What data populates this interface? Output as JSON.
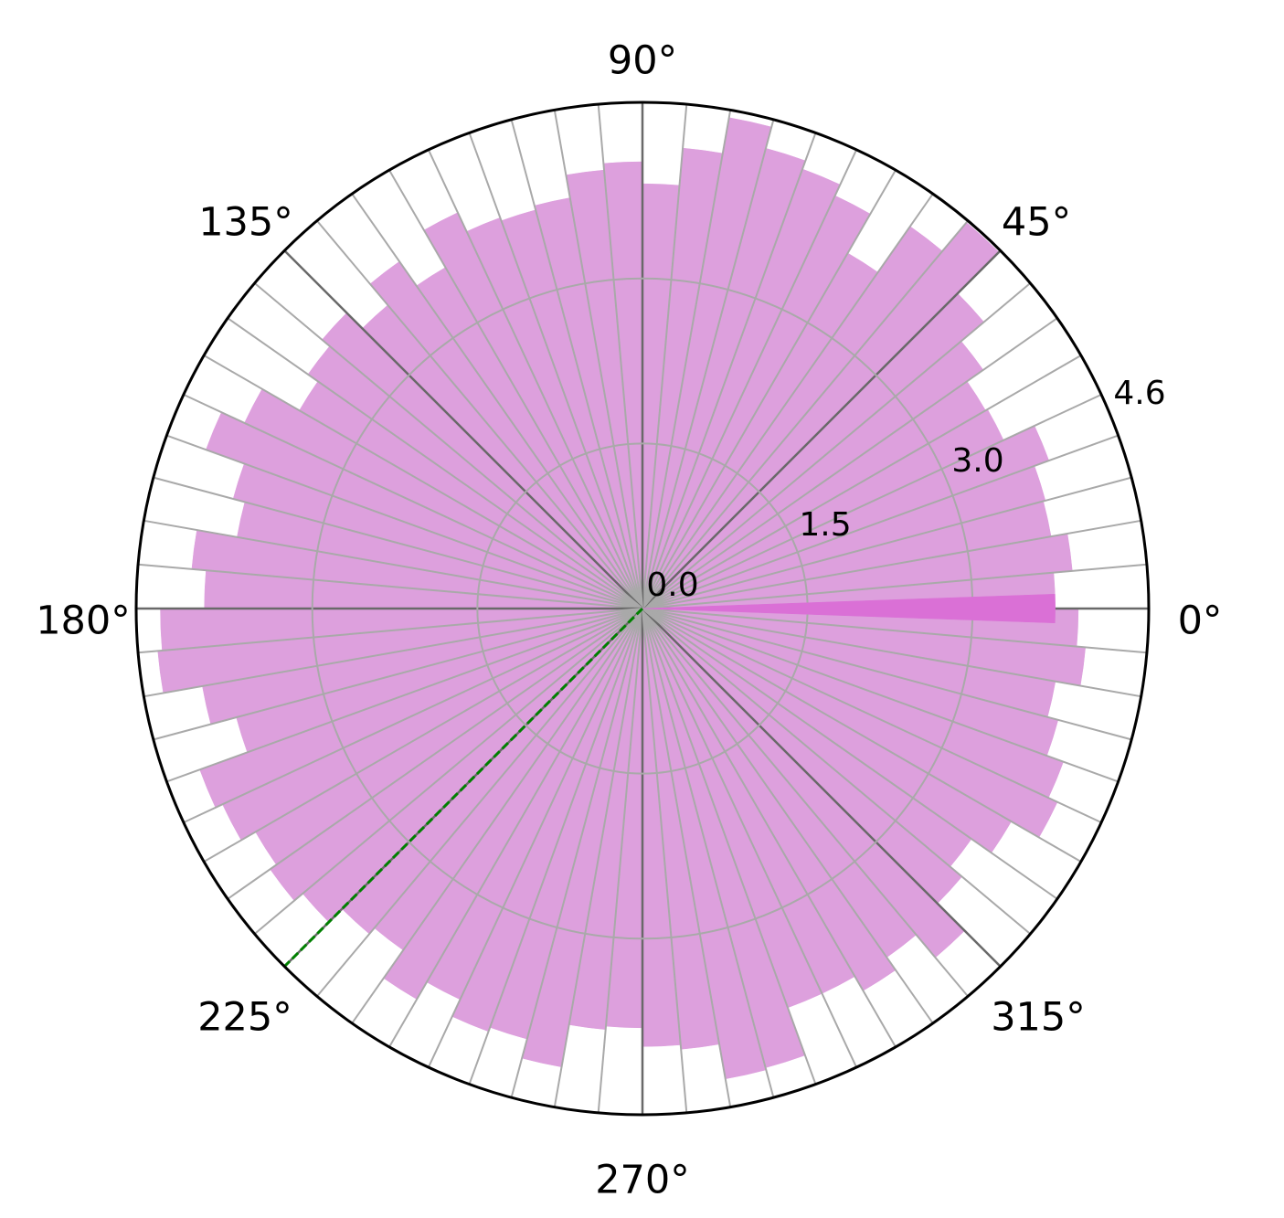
{
  "chart_data": {
    "type": "bar",
    "projection": "polar",
    "bin_count": 72,
    "bin_width_degrees": 5,
    "angle_direction": "counterclockwise",
    "angle_zero": "east",
    "r_range": [
      0,
      4.6
    ],
    "radial_ticks": [
      "0.0",
      "1.5",
      "3.0",
      "4.6"
    ],
    "angle_ticks": [
      "0°",
      "45°",
      "90°",
      "135°",
      "180°",
      "225°",
      "270°",
      "315°"
    ],
    "angle_tick_values": [
      0,
      45,
      90,
      135,
      180,
      225,
      270,
      315
    ],
    "bin_start_degrees": [
      0,
      5,
      10,
      15,
      20,
      25,
      30,
      35,
      40,
      45,
      50,
      55,
      60,
      65,
      70,
      75,
      80,
      85,
      90,
      95,
      100,
      105,
      110,
      115,
      120,
      125,
      130,
      135,
      140,
      145,
      150,
      155,
      160,
      165,
      170,
      175,
      180,
      185,
      190,
      195,
      200,
      205,
      210,
      215,
      220,
      225,
      230,
      235,
      240,
      245,
      250,
      255,
      260,
      265,
      270,
      275,
      280,
      285,
      290,
      295,
      300,
      305,
      310,
      315,
      320,
      325,
      330,
      335,
      340,
      345,
      350,
      355
    ],
    "values": [
      3.75,
      3.92,
      3.77,
      3.79,
      3.93,
      3.62,
      3.6,
      3.78,
      4.05,
      4.58,
      4.24,
      3.73,
      4.14,
      4.25,
      4.33,
      4.53,
      4.2,
      3.86,
      4.06,
      4.0,
      3.79,
      3.75,
      3.78,
      3.97,
      3.58,
      3.85,
      3.6,
      3.8,
      3.71,
      3.6,
      3.99,
      4.22,
      3.85,
      3.74,
      4.11,
      3.98,
      4.38,
      4.42,
      4.06,
      3.82,
      4.28,
      4.21,
      4.06,
      4.13,
      4.03,
      3.86,
      3.79,
      4.1,
      3.92,
      4.09,
      4.05,
      4.23,
      3.84,
      3.81,
      3.98,
      4.02,
      4.34,
      4.32,
      3.86,
      3.86,
      4.01,
      3.87,
      4.14,
      3.79,
      3.65,
      3.87,
      4.16,
      4.07,
      3.91,
      3.81,
      4.04,
      3.96
    ],
    "zero_bar_value": 3.75,
    "grid": true,
    "colors": {
      "bars": "#DDA0DD",
      "zero_bar": "#DA70D6",
      "grid": "#A9A9A9",
      "major_radials": "#696969",
      "reference_line": "#008000",
      "outline": "#000000"
    },
    "reference_line": {
      "angle_degrees": 225,
      "style": "dashed"
    }
  }
}
